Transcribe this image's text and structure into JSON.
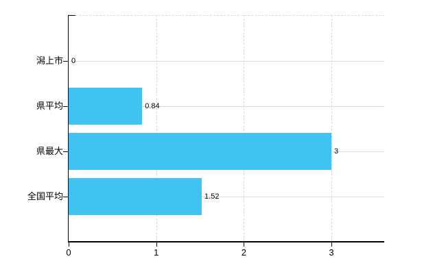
{
  "chart_data": {
    "type": "bar",
    "orientation": "horizontal",
    "title": "",
    "xlabel": "",
    "ylabel": "",
    "categories": [
      "潟上市",
      "県平均",
      "県最大",
      "全国平均"
    ],
    "values": [
      0,
      0.84,
      3,
      1.52
    ],
    "value_labels": [
      "0",
      "0.84",
      "3",
      "1.52"
    ],
    "x_ticks": [
      0,
      1,
      2,
      3
    ],
    "x_tick_labels": [
      "0",
      "1",
      "2",
      "3"
    ],
    "xlim": [
      0,
      3.6
    ],
    "grid": true,
    "legend": false,
    "bar_color": "#40c3f0",
    "horizontal_grid_color": "#d9ded9",
    "vertical_grid_color": "#d9d9d9",
    "axis_color": "#000000",
    "text_color": "#000000",
    "background_color": "#ffffff"
  }
}
